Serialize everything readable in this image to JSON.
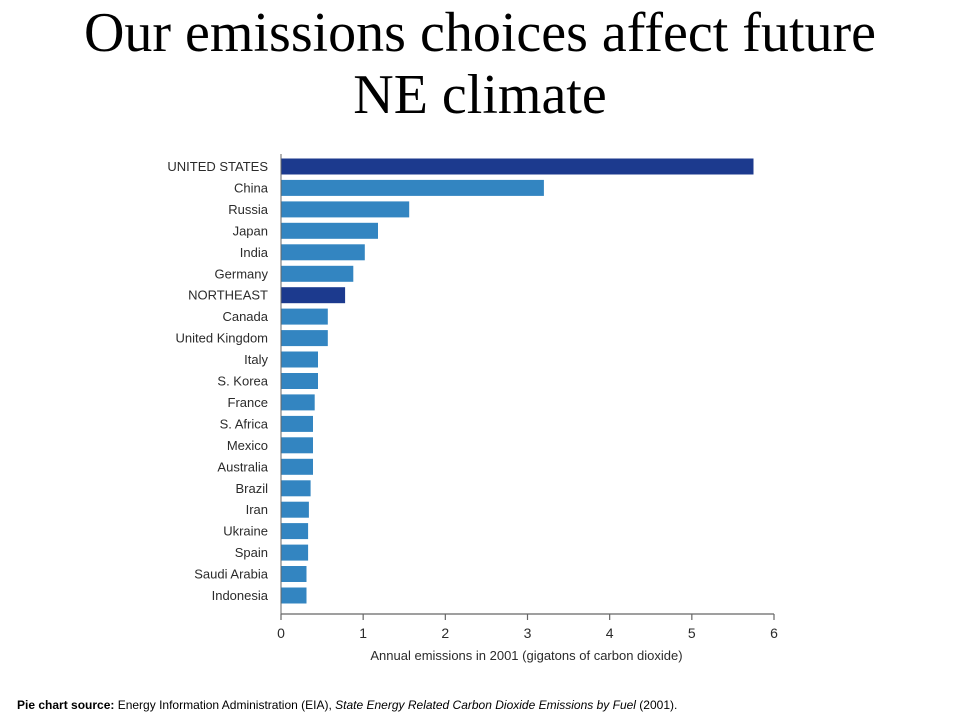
{
  "slide": {
    "title_line1": "Our emissions choices affect future",
    "title_line2": "NE climate"
  },
  "source": {
    "label": "Pie chart source:",
    "text1": " Energy Information Administration (EIA), ",
    "title": "State Energy Related Carbon Dioxide Emissions by Fuel",
    "text2": " (2001)."
  },
  "colors": {
    "highlight": "#1c3a8e",
    "default": "#3385c1",
    "axis": "#666666"
  },
  "chart_data": {
    "type": "bar",
    "orientation": "horizontal",
    "categories": [
      "UNITED STATES",
      "China",
      "Russia",
      "Japan",
      "India",
      "Germany",
      "NORTHEAST",
      "Canada",
      "United Kingdom",
      "Italy",
      "S. Korea",
      "France",
      "S. Africa",
      "Mexico",
      "Australia",
      "Brazil",
      "Iran",
      "Ukraine",
      "Spain",
      "Saudi Arabia",
      "Indonesia"
    ],
    "values": [
      5.75,
      3.2,
      1.56,
      1.18,
      1.02,
      0.88,
      0.78,
      0.57,
      0.57,
      0.45,
      0.45,
      0.41,
      0.39,
      0.39,
      0.39,
      0.36,
      0.34,
      0.33,
      0.33,
      0.31,
      0.31
    ],
    "highlighted": [
      "UNITED STATES",
      "NORTHEAST"
    ],
    "xlabel": "Annual emissions in 2001 (gigatons of carbon dioxide)",
    "xlim": [
      0,
      6
    ],
    "xticks": [
      0,
      1,
      2,
      3,
      4,
      5,
      6
    ],
    "grid": false
  }
}
